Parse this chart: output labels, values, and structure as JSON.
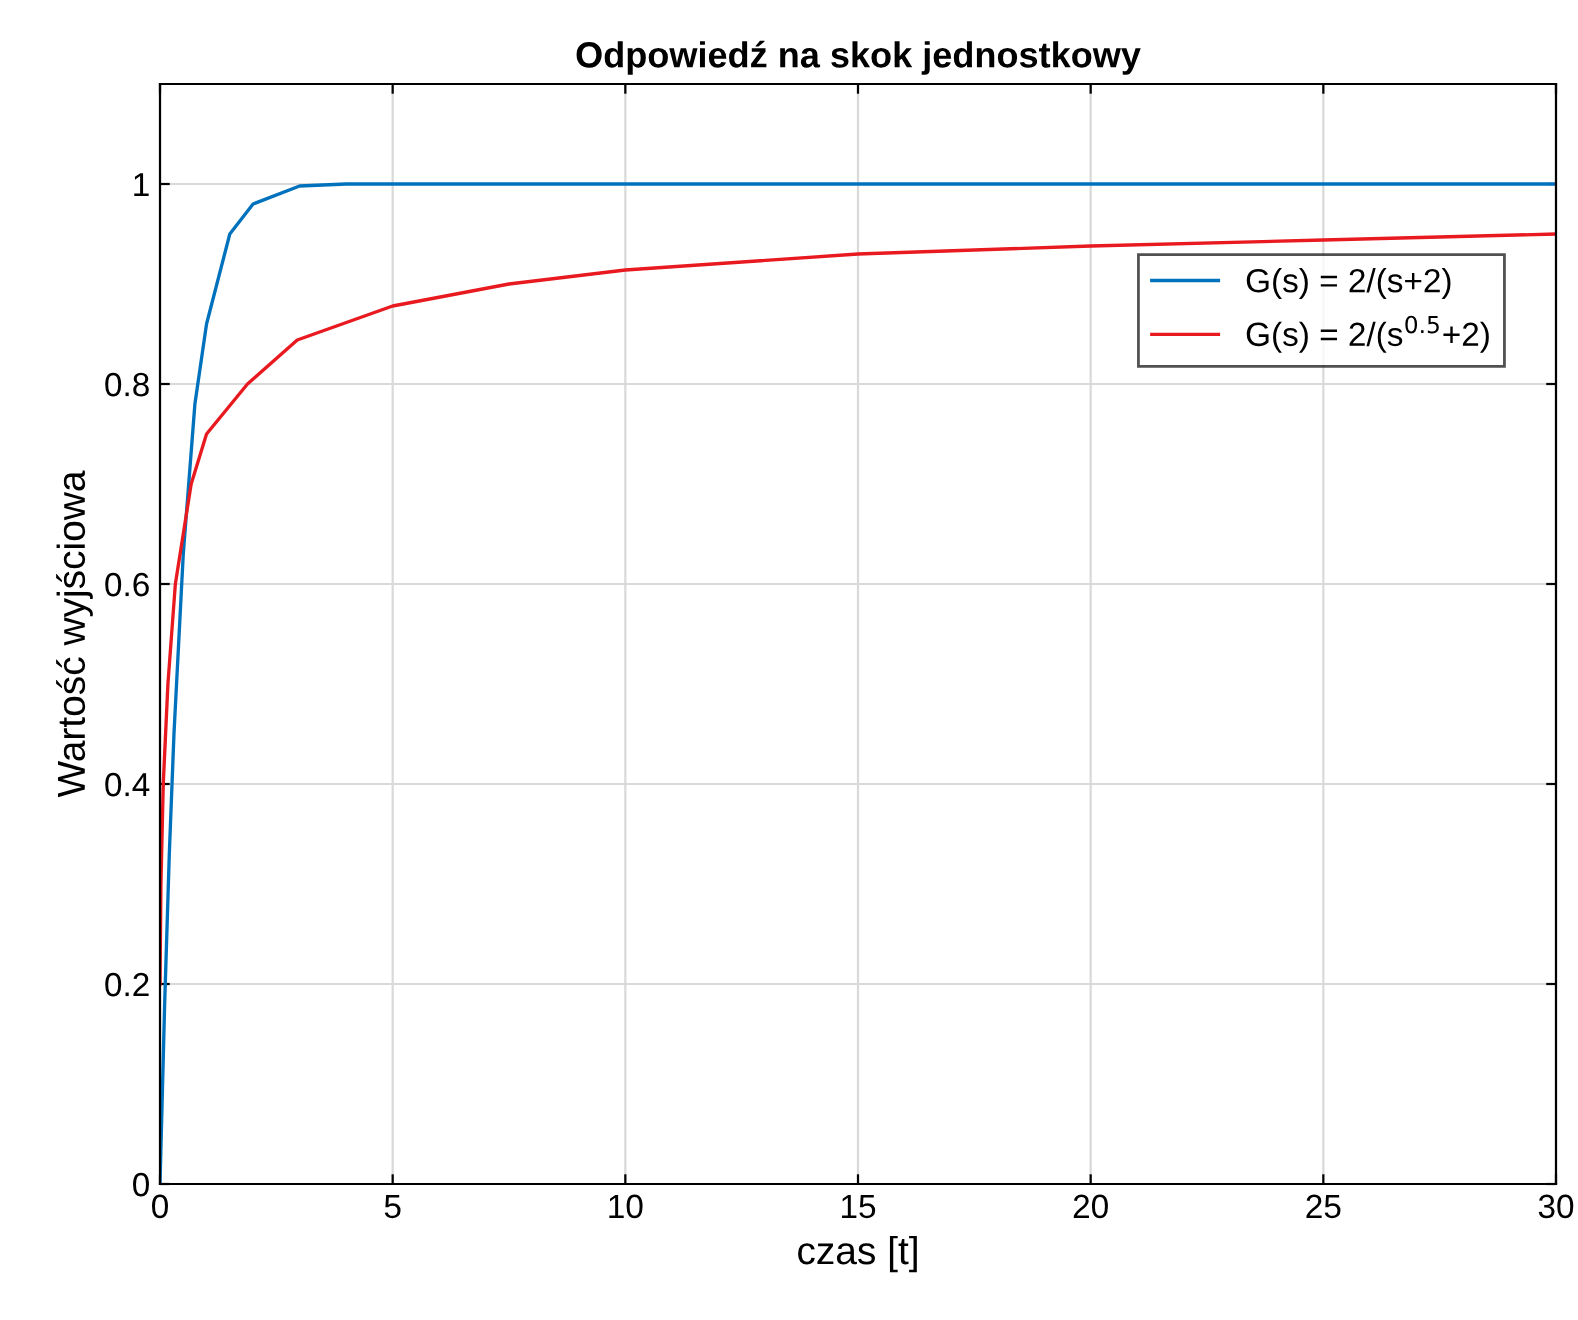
{
  "chart_data": {
    "type": "line",
    "title": "Odpowiedź na skok jednostkowy",
    "xlabel": "czas [t]",
    "ylabel": "Wartość wyjściowa",
    "xlim": [
      0,
      30
    ],
    "xticks": [
      0,
      5,
      10,
      15,
      20,
      25,
      30
    ],
    "ylim": [
      0,
      1.1
    ],
    "yticks": [
      0,
      0.2,
      0.4,
      0.6,
      0.8,
      1
    ],
    "grid": true,
    "legend": "top right",
    "line_style": "solid",
    "series": [
      {
        "name": "G(s) = 2/(s+2)",
        "color": "#0072bd",
        "x": [
          0,
          0.1,
          0.2,
          0.3,
          0.5,
          0.75,
          1,
          1.5,
          2,
          3,
          4,
          30
        ],
        "values": [
          0,
          0.18,
          0.33,
          0.45,
          0.63,
          0.78,
          0.86,
          0.95,
          0.98,
          0.998,
          1,
          1
        ]
      },
      {
        "name": "G(s) = 2/(s$^{0.5}$+2)",
        "color": "#e8191f",
        "x": [
          0,
          0.02,
          0.07,
          0.17,
          0.33,
          0.67,
          1,
          1.88,
          2.95,
          5,
          7.5,
          10,
          15,
          20,
          25,
          30
        ],
        "values": [
          0.2,
          0.3,
          0.4,
          0.5,
          0.6,
          0.7,
          0.75,
          0.8,
          0.844,
          0.878,
          0.9,
          0.914,
          0.93,
          0.938,
          0.944,
          0.95
        ]
      }
    ]
  }
}
